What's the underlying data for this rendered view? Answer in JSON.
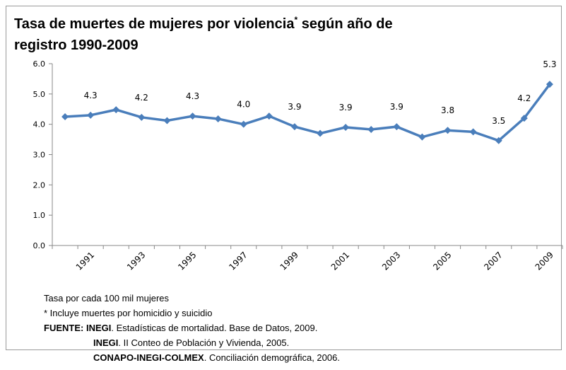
{
  "chart_data": {
    "type": "line",
    "title": {
      "text": "Tasa de muertes de mujeres por violencia",
      "mark": "*",
      "rest": " según año de",
      "line2": "registro 1990-2009"
    },
    "categories": [
      null,
      "1991",
      null,
      "1993",
      null,
      "1995",
      null,
      "1997",
      null,
      "1999",
      null,
      "2001",
      null,
      "2003",
      null,
      "2005",
      null,
      "2007",
      null,
      "2009"
    ],
    "series": [
      {
        "color": "#4a7ebb",
        "values": [
          4.25,
          4.3,
          4.48,
          4.23,
          4.12,
          4.27,
          4.18,
          4.0,
          4.27,
          3.92,
          3.7,
          3.9,
          3.83,
          3.92,
          3.58,
          3.8,
          3.75,
          3.46,
          4.2,
          5.32
        ],
        "value_labels": [
          null,
          "4.3",
          null,
          "4.2",
          null,
          "4.3",
          null,
          "4.0",
          null,
          "3.9",
          null,
          "3.9",
          null,
          "3.9",
          null,
          "3.8",
          null,
          "3.5",
          "4.2",
          "5.3"
        ]
      }
    ],
    "ylim": [
      0,
      6
    ],
    "yticks": [
      {
        "value": 0,
        "label": "0.0"
      },
      {
        "value": 1,
        "label": "1.0"
      },
      {
        "value": 2,
        "label": "2.0"
      },
      {
        "value": 3,
        "label": "3.0"
      },
      {
        "value": 4,
        "label": "4.0"
      },
      {
        "value": 5,
        "label": "5.0"
      },
      {
        "value": 6,
        "label": "6.0"
      }
    ],
    "notes": [
      "Tasa por cada 100 mil mujeres",
      "* Incluye muertes por homicidio y suicidio"
    ],
    "sources": {
      "prefix": "FUENTE:",
      "items": [
        {
          "org": "INEGI",
          "text": ". Estadísticas de mortalidad. Base de Datos, 2009."
        },
        {
          "org": "INEGI",
          "text": ". II Conteo de Población y Vivienda, 2005."
        },
        {
          "org": "CONAPO-INEGI-COLMEX",
          "text": ". Conciliación demográfica, 2006."
        }
      ]
    }
  }
}
